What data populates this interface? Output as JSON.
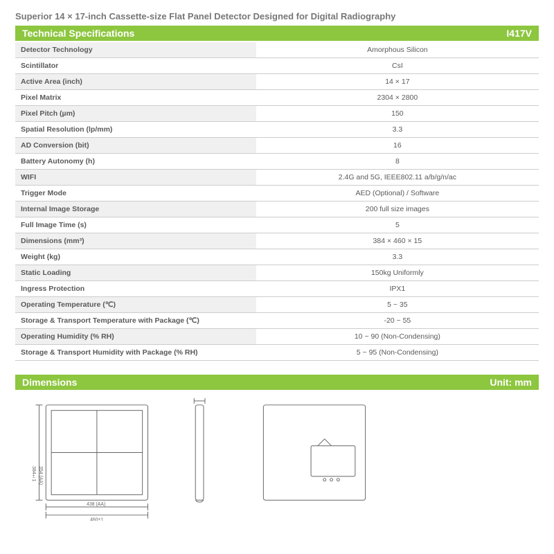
{
  "page": {
    "title": "Superior 14 × 17-inch Cassette-size Flat Panel Detector Designed for Digital Radiography"
  },
  "sections": {
    "specs": {
      "header": "Technical Specifications",
      "model": "I417V"
    },
    "dims": {
      "header": "Dimensions",
      "unit": "Unit: mm"
    }
  },
  "specifications": [
    {
      "label": "Detector Technology",
      "value": "Amorphous Silicon"
    },
    {
      "label": "Scintillator",
      "value": "CsI"
    },
    {
      "label": "Active Area (inch)",
      "value": "14 × 17"
    },
    {
      "label": "Pixel Matrix",
      "value": "2304 × 2800"
    },
    {
      "label": "Pixel Pitch (µm)",
      "value": "150"
    },
    {
      "label": "Spatial Resolution (lp/mm)",
      "value": "3.3"
    },
    {
      "label": "AD Conversion (bit)",
      "value": "16"
    },
    {
      "label": "Battery Autonomy (h)",
      "value": "8"
    },
    {
      "label": "WIFI",
      "value": "2.4G and 5G, IEEE802.11 a/b/g/n/ac"
    },
    {
      "label": "Trigger Mode",
      "value": "AED (Optional) / Software"
    },
    {
      "label": "Internal Image Storage",
      "value": "200 full size images"
    },
    {
      "label": "Full Image Time (s)",
      "value": "5"
    },
    {
      "label": "Dimensions (mm³)",
      "value": "384 × 460 × 15"
    },
    {
      "label": "Weight (kg)",
      "value": "3.3"
    },
    {
      "label": "Static Loading",
      "value": "150kg Uniformly"
    },
    {
      "label": "Ingress Protection",
      "value": "IPX1"
    },
    {
      "label": "Operating Temperature (℃)",
      "value": "5 ~ 35"
    },
    {
      "label": "Storage & Transport Temperature with Package (℃)",
      "value": "-20 ~ 55"
    },
    {
      "label": "Operating Humidity (% RH)",
      "value": "10 ~ 90 (Non-Condensing)"
    },
    {
      "label": "Storage & Transport Humidity with Package (% RH)",
      "value": "5 ~ 95 (Non-Condensing)"
    }
  ],
  "diagram": {
    "front": {
      "width_outer": "460±1",
      "width_inner": "438 (AA)",
      "height_outer": "384±1",
      "height_inner": "354 (AA)"
    },
    "side": {
      "depth": "15±1"
    },
    "back": {}
  },
  "style": {
    "accent": "#8dc63f",
    "text": "#595959",
    "alt_row_bg": "#f0f0f0",
    "border": "#cccccc"
  }
}
